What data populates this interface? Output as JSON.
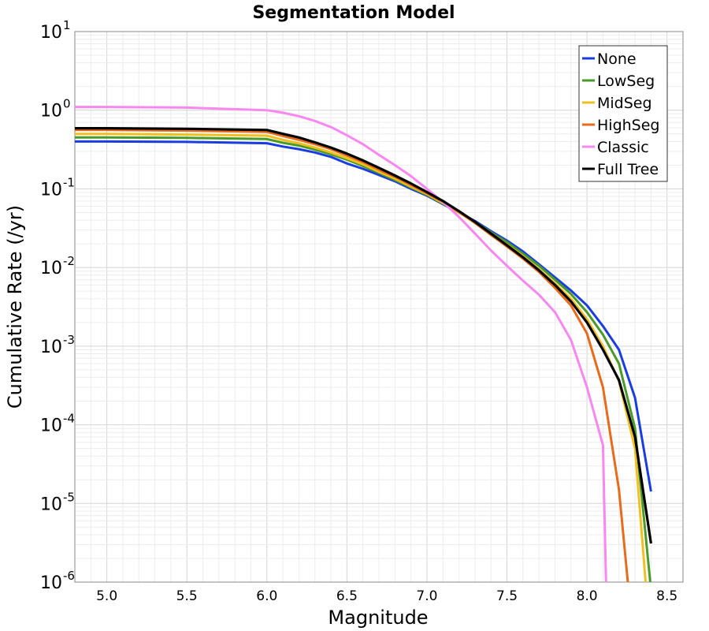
{
  "chart_data": {
    "type": "line",
    "title": "Segmentation Model",
    "xlabel": "Magnitude",
    "ylabel": "Cumulative Rate (/yr)",
    "xlim": [
      4.8,
      8.6
    ],
    "ylim": [
      1e-06,
      10
    ],
    "yscale": "log",
    "xticks": [
      "5.0",
      "5.5",
      "6.0",
      "6.5",
      "7.0",
      "7.5",
      "8.0",
      "8.5"
    ],
    "yticks": [
      {
        "base": "10",
        "exp": "1"
      },
      {
        "base": "10",
        "exp": "0"
      },
      {
        "base": "10",
        "exp": "-1"
      },
      {
        "base": "10",
        "exp": "-2"
      },
      {
        "base": "10",
        "exp": "-3"
      },
      {
        "base": "10",
        "exp": "-4"
      },
      {
        "base": "10",
        "exp": "-5"
      },
      {
        "base": "10",
        "exp": "-6"
      }
    ],
    "grid": true,
    "legend_position": "top-right",
    "series": [
      {
        "name": "None",
        "color": "#1a3de0",
        "points": [
          [
            4.8,
            0.4
          ],
          [
            5.0,
            0.4
          ],
          [
            5.5,
            0.395
          ],
          [
            6.0,
            0.38
          ],
          [
            6.1,
            0.345
          ],
          [
            6.2,
            0.32
          ],
          [
            6.3,
            0.29
          ],
          [
            6.4,
            0.255
          ],
          [
            6.5,
            0.21
          ],
          [
            6.6,
            0.18
          ],
          [
            6.7,
            0.15
          ],
          [
            6.8,
            0.125
          ],
          [
            6.9,
            0.1
          ],
          [
            7.0,
            0.082
          ],
          [
            7.1,
            0.064
          ],
          [
            7.2,
            0.05
          ],
          [
            7.3,
            0.039
          ],
          [
            7.4,
            0.029
          ],
          [
            7.5,
            0.022
          ],
          [
            7.6,
            0.016
          ],
          [
            7.7,
            0.011
          ],
          [
            7.8,
            0.0075
          ],
          [
            7.9,
            0.0051
          ],
          [
            8.0,
            0.0033
          ],
          [
            8.1,
            0.0018
          ],
          [
            8.2,
            0.0009
          ],
          [
            8.3,
            0.00022
          ],
          [
            8.4,
            1.42e-05
          ]
        ]
      },
      {
        "name": "LowSeg",
        "color": "#4a9a2a",
        "points": [
          [
            4.8,
            0.45
          ],
          [
            5.0,
            0.45
          ],
          [
            5.5,
            0.445
          ],
          [
            6.0,
            0.43
          ],
          [
            6.1,
            0.385
          ],
          [
            6.2,
            0.355
          ],
          [
            6.3,
            0.315
          ],
          [
            6.4,
            0.275
          ],
          [
            6.5,
            0.235
          ],
          [
            6.6,
            0.195
          ],
          [
            6.7,
            0.16
          ],
          [
            6.8,
            0.13
          ],
          [
            6.9,
            0.104
          ],
          [
            7.0,
            0.084
          ],
          [
            7.1,
            0.065
          ],
          [
            7.2,
            0.05
          ],
          [
            7.3,
            0.038
          ],
          [
            7.4,
            0.028
          ],
          [
            7.5,
            0.021
          ],
          [
            7.6,
            0.015
          ],
          [
            7.7,
            0.0105
          ],
          [
            7.8,
            0.007
          ],
          [
            7.9,
            0.0046
          ],
          [
            8.0,
            0.0027
          ],
          [
            8.1,
            0.0014
          ],
          [
            8.2,
            0.0006
          ],
          [
            8.3,
            9e-05
          ],
          [
            8.4,
            8e-07
          ]
        ]
      },
      {
        "name": "MidSeg",
        "color": "#f0c020",
        "points": [
          [
            4.8,
            0.5
          ],
          [
            5.0,
            0.5
          ],
          [
            5.5,
            0.49
          ],
          [
            6.0,
            0.475
          ],
          [
            6.1,
            0.42
          ],
          [
            6.2,
            0.38
          ],
          [
            6.3,
            0.335
          ],
          [
            6.4,
            0.29
          ],
          [
            6.5,
            0.245
          ],
          [
            6.6,
            0.205
          ],
          [
            6.7,
            0.165
          ],
          [
            6.8,
            0.135
          ],
          [
            6.9,
            0.107
          ],
          [
            7.0,
            0.086
          ],
          [
            7.1,
            0.066
          ],
          [
            7.2,
            0.05
          ],
          [
            7.3,
            0.037
          ],
          [
            7.4,
            0.027
          ],
          [
            7.5,
            0.0195
          ],
          [
            7.6,
            0.014
          ],
          [
            7.7,
            0.0095
          ],
          [
            7.8,
            0.0063
          ],
          [
            7.9,
            0.004
          ],
          [
            8.0,
            0.0022
          ],
          [
            8.1,
            0.001
          ],
          [
            8.2,
            0.00036
          ],
          [
            8.3,
            5e-05
          ],
          [
            8.37,
            8e-07
          ]
        ]
      },
      {
        "name": "HighSeg",
        "color": "#e86a1a",
        "points": [
          [
            4.8,
            0.56
          ],
          [
            5.0,
            0.56
          ],
          [
            5.5,
            0.55
          ],
          [
            6.0,
            0.53
          ],
          [
            6.1,
            0.47
          ],
          [
            6.2,
            0.42
          ],
          [
            6.3,
            0.37
          ],
          [
            6.4,
            0.32
          ],
          [
            6.5,
            0.265
          ],
          [
            6.6,
            0.22
          ],
          [
            6.7,
            0.175
          ],
          [
            6.8,
            0.142
          ],
          [
            6.9,
            0.112
          ],
          [
            7.0,
            0.088
          ],
          [
            7.1,
            0.068
          ],
          [
            7.2,
            0.051
          ],
          [
            7.3,
            0.037
          ],
          [
            7.4,
            0.026
          ],
          [
            7.5,
            0.0185
          ],
          [
            7.6,
            0.013
          ],
          [
            7.7,
            0.0088
          ],
          [
            7.8,
            0.0055
          ],
          [
            7.9,
            0.0033
          ],
          [
            8.0,
            0.00145
          ],
          [
            8.1,
            0.0003
          ],
          [
            8.2,
            1.5e-05
          ],
          [
            8.26,
            8e-07
          ]
        ]
      },
      {
        "name": "Classic",
        "color": "#f888f0",
        "points": [
          [
            4.8,
            1.1
          ],
          [
            5.0,
            1.1
          ],
          [
            5.5,
            1.08
          ],
          [
            6.0,
            1.0
          ],
          [
            6.1,
            0.93
          ],
          [
            6.2,
            0.84
          ],
          [
            6.3,
            0.73
          ],
          [
            6.4,
            0.61
          ],
          [
            6.5,
            0.48
          ],
          [
            6.6,
            0.37
          ],
          [
            6.7,
            0.27
          ],
          [
            6.8,
            0.2
          ],
          [
            6.9,
            0.145
          ],
          [
            7.0,
            0.1
          ],
          [
            7.1,
            0.068
          ],
          [
            7.2,
            0.044
          ],
          [
            7.3,
            0.027
          ],
          [
            7.4,
            0.0165
          ],
          [
            7.5,
            0.0105
          ],
          [
            7.6,
            0.0068
          ],
          [
            7.7,
            0.0045
          ],
          [
            7.8,
            0.0027
          ],
          [
            7.9,
            0.0012
          ],
          [
            8.0,
            0.0003
          ],
          [
            8.1,
            5.5e-05
          ],
          [
            8.12,
            8e-07
          ]
        ]
      },
      {
        "name": "Full Tree",
        "color": "#000000",
        "points": [
          [
            4.8,
            0.59
          ],
          [
            5.0,
            0.59
          ],
          [
            5.5,
            0.58
          ],
          [
            6.0,
            0.56
          ],
          [
            6.1,
            0.5
          ],
          [
            6.2,
            0.45
          ],
          [
            6.3,
            0.39
          ],
          [
            6.4,
            0.335
          ],
          [
            6.5,
            0.28
          ],
          [
            6.6,
            0.23
          ],
          [
            6.7,
            0.185
          ],
          [
            6.8,
            0.148
          ],
          [
            6.9,
            0.117
          ],
          [
            7.0,
            0.091
          ],
          [
            7.1,
            0.07
          ],
          [
            7.2,
            0.052
          ],
          [
            7.3,
            0.038
          ],
          [
            7.4,
            0.027
          ],
          [
            7.5,
            0.0192
          ],
          [
            7.6,
            0.0135
          ],
          [
            7.7,
            0.0092
          ],
          [
            7.8,
            0.006
          ],
          [
            7.9,
            0.0037
          ],
          [
            8.0,
            0.002
          ],
          [
            8.1,
            0.0009
          ],
          [
            8.2,
            0.00037
          ],
          [
            8.3,
            7e-05
          ],
          [
            8.4,
            3.1e-06
          ]
        ]
      }
    ]
  }
}
